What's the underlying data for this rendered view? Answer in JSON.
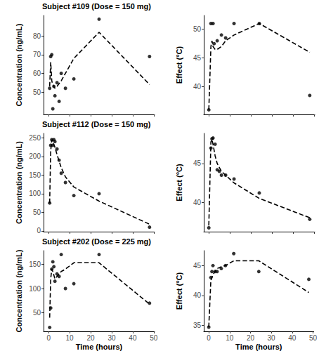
{
  "chart_data": [
    {
      "type": "scatter",
      "title": "Subject #109 (Dose = 150 mg)",
      "y_label": "Concentration (ng/mL)",
      "xlim": [
        -2.4,
        50.4
      ],
      "xticks": [
        0,
        10,
        20,
        30,
        40,
        50
      ],
      "ylim": [
        38,
        91
      ],
      "yticks": [
        50,
        60,
        70,
        80
      ],
      "grid": false,
      "tick_labels": "y",
      "series": [
        {
          "type": "scatter",
          "marker": "circle",
          "color": "#000000",
          "x": [
            0.5,
            1,
            1.5,
            2,
            2.5,
            3,
            4,
            5,
            6,
            8,
            12,
            24,
            48
          ],
          "values": [
            52,
            69,
            70,
            41,
            53,
            48,
            55,
            45,
            60,
            52,
            57,
            89,
            69
          ]
        },
        {
          "type": "line",
          "line_style": "dashed",
          "color": "#000000",
          "x": [
            0.5,
            1,
            1.5,
            2,
            3,
            4,
            6,
            8,
            12,
            24,
            48
          ],
          "values": [
            53,
            66,
            56,
            54,
            52,
            53,
            56,
            60,
            68,
            82,
            54
          ]
        }
      ]
    },
    {
      "type": "scatter",
      "y_label": "Effect (°C)",
      "xlim": [
        -2.4,
        50.4
      ],
      "xticks": [
        0,
        10,
        20,
        30,
        40,
        50
      ],
      "ylim": [
        35.2,
        52.4
      ],
      "yticks": [
        40,
        45,
        50
      ],
      "grid": false,
      "tick_labels": "y",
      "series": [
        {
          "type": "scatter",
          "marker": "circle",
          "color": "#000000",
          "x": [
            0,
            1,
            2,
            2.5,
            4,
            6,
            8,
            12,
            24,
            48
          ],
          "values": [
            36,
            51,
            51,
            47.5,
            48,
            49,
            48.5,
            51,
            51,
            38.5
          ]
        },
        {
          "type": "line",
          "line_style": "dashed",
          "color": "#000000",
          "x": [
            0,
            1,
            1.5,
            2,
            3,
            4,
            6,
            8,
            12,
            24,
            48
          ],
          "values": [
            36,
            47,
            48,
            47,
            46.5,
            46.5,
            47,
            48,
            49,
            51,
            46
          ]
        }
      ]
    },
    {
      "type": "scatter",
      "title": "Subject #112 (Dose = 150 mg)",
      "y_label": "Concentration (ng/mL)",
      "xlim": [
        -2.4,
        50.4
      ],
      "xticks": [
        0,
        10,
        20,
        30,
        40,
        50
      ],
      "ylim": [
        -2,
        262
      ],
      "yticks": [
        0,
        50,
        100,
        150,
        200,
        250
      ],
      "grid": false,
      "tick_labels": "y",
      "series": [
        {
          "type": "scatter",
          "marker": "circle",
          "color": "#000000",
          "x": [
            0.5,
            1,
            1.5,
            2,
            2.5,
            3,
            4,
            5,
            6,
            8,
            12,
            24,
            48
          ],
          "values": [
            75,
            230,
            245,
            230,
            245,
            240,
            220,
            190,
            155,
            130,
            95,
            100,
            10
          ]
        },
        {
          "type": "line",
          "line_style": "dashed",
          "color": "#000000",
          "x": [
            0.5,
            1,
            1.5,
            2,
            3,
            4,
            6,
            8,
            12,
            24,
            48
          ],
          "values": [
            75,
            215,
            245,
            240,
            225,
            205,
            170,
            145,
            118,
            80,
            18
          ]
        }
      ]
    },
    {
      "type": "scatter",
      "y_label": "Effect (°C)",
      "xlim": [
        -2.4,
        50.4
      ],
      "xticks": [
        0,
        10,
        20,
        30,
        40,
        50
      ],
      "ylim": [
        36.2,
        48.9
      ],
      "yticks": [
        40,
        45
      ],
      "grid": false,
      "tick_labels": "y",
      "series": [
        {
          "type": "scatter",
          "marker": "circle",
          "color": "#000000",
          "x": [
            0,
            1,
            1.5,
            2,
            3,
            4,
            5,
            6,
            8,
            12,
            24,
            48
          ],
          "values": [
            36.7,
            47,
            48.2,
            48.3,
            47.5,
            44.2,
            44,
            43.5,
            43.5,
            43,
            41.2,
            37.8
          ]
        },
        {
          "type": "line",
          "line_style": "dashed",
          "color": "#000000",
          "x": [
            0,
            1,
            1.5,
            2,
            3,
            4,
            6,
            8,
            12,
            24,
            48
          ],
          "values": [
            37,
            47.8,
            48.1,
            47.5,
            46,
            45,
            44,
            43.5,
            42.5,
            40.5,
            38
          ]
        }
      ]
    },
    {
      "type": "scatter",
      "title": "Subject #202 (Dose = 225 mg)",
      "y_label": "Concentration (ng/mL)",
      "x_label": "Time (hours)",
      "xlim": [
        -2.4,
        50.4
      ],
      "xticks": [
        0,
        10,
        20,
        30,
        40,
        50
      ],
      "ylim": [
        12,
        178
      ],
      "yticks": [
        50,
        100,
        150
      ],
      "grid": false,
      "series": [
        {
          "type": "scatter",
          "marker": "circle",
          "color": "#000000",
          "x": [
            0.5,
            1,
            1.5,
            2,
            2.5,
            3,
            4,
            5,
            6,
            8,
            12,
            24,
            48
          ],
          "values": [
            20,
            60,
            140,
            155,
            145,
            115,
            130,
            125,
            170,
            100,
            110,
            170,
            70
          ]
        },
        {
          "type": "line",
          "line_style": "dashed",
          "color": "#000000",
          "x": [
            0.5,
            1,
            1.5,
            2,
            3,
            4,
            6,
            8,
            12,
            24,
            48
          ],
          "values": [
            40,
            120,
            140,
            135,
            120,
            125,
            135,
            140,
            153,
            153,
            68
          ]
        }
      ]
    },
    {
      "type": "scatter",
      "y_label": "Effect (°C)",
      "x_label": "Time (hours)",
      "xlim": [
        -2.4,
        50.4
      ],
      "xticks": [
        0,
        10,
        20,
        30,
        40,
        50
      ],
      "ylim": [
        34,
        47.5
      ],
      "yticks": [
        35,
        40,
        45
      ],
      "grid": false,
      "series": [
        {
          "type": "scatter",
          "marker": "circle",
          "color": "#000000",
          "x": [
            0,
            1,
            1.5,
            2,
            3,
            4,
            6,
            8,
            12,
            24,
            48
          ],
          "values": [
            34.7,
            43,
            44,
            45,
            44,
            44,
            44.5,
            45,
            47,
            44,
            42.7
          ]
        },
        {
          "type": "line",
          "line_style": "dashed",
          "color": "#000000",
          "x": [
            0,
            1,
            2,
            3,
            4,
            6,
            8,
            12,
            24,
            48
          ],
          "values": [
            34.7,
            42.5,
            43.5,
            44,
            44.5,
            44.8,
            45,
            45.8,
            45.8,
            40.5
          ]
        }
      ]
    }
  ]
}
